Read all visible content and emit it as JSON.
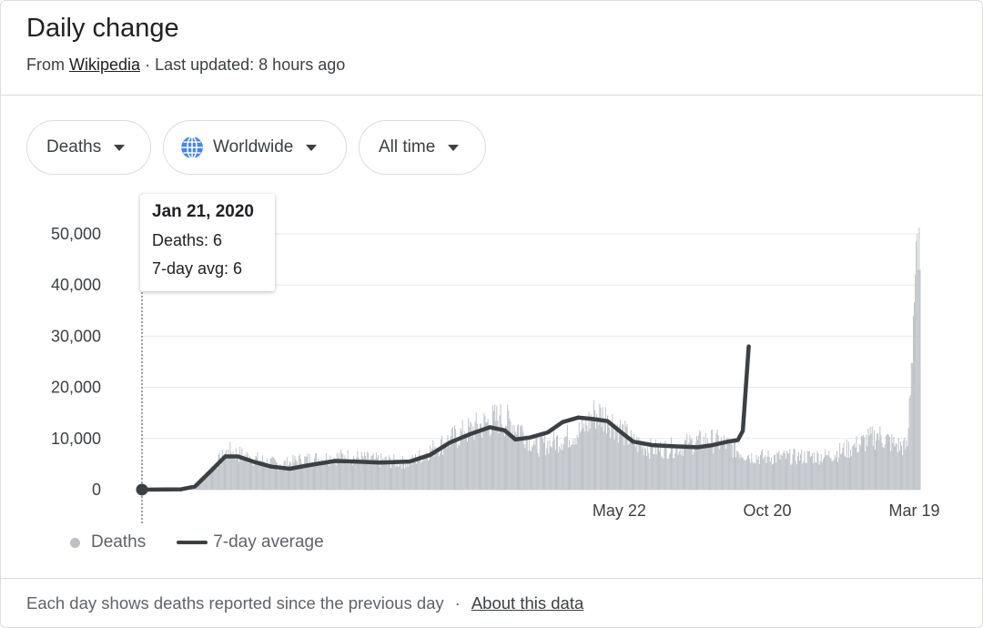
{
  "header": {
    "title": "Daily change",
    "source_prefix": "From",
    "source_link": "Wikipedia",
    "separator": "·",
    "updated": "Last updated: 8 hours ago"
  },
  "filters": {
    "metric": "Deaths",
    "region": "Worldwide",
    "range": "All time"
  },
  "tooltip": {
    "date": "Jan 21, 2020",
    "deaths": "Deaths: 6",
    "avg": "7-day avg: 6"
  },
  "legend": {
    "bars": "Deaths",
    "line": "7-day average"
  },
  "footer": {
    "note": "Each day shows deaths reported since the previous day",
    "separator": "·",
    "link": "About this data"
  },
  "colors": {
    "bars": "#bdc1c6",
    "line": "#3c4043",
    "grid": "#e8eaed",
    "axis_text": "#3c4043"
  },
  "chart_data": {
    "type": "bar",
    "title": "Daily change",
    "y_ticks": [
      0,
      10000,
      20000,
      30000,
      40000,
      50000
    ],
    "y_tick_labels": [
      "0",
      "10,000",
      "20,000",
      "30,000",
      "40,000",
      "50,000"
    ],
    "ylim": [
      0,
      50000
    ],
    "x_tick_labels": [
      {
        "date": "2021-05-22",
        "label": "May 22"
      },
      {
        "date": "2021-10-20",
        "label": "Oct 20"
      },
      {
        "date": "2022-03-19",
        "label": "Mar 19"
      }
    ],
    "x_range": [
      "2020-01-21",
      "2022-03-25"
    ],
    "grid": true,
    "legend_position": "bottom-left",
    "highlight": {
      "date": "2020-01-21",
      "deaths": 6,
      "avg": 6
    },
    "series": [
      {
        "name": "Deaths",
        "kind": "bar",
        "points": [
          [
            "2020-01-21",
            6
          ],
          [
            "2020-02-15",
            30
          ],
          [
            "2020-03-15",
            400
          ],
          [
            "2020-04-02",
            4500
          ],
          [
            "2020-04-18",
            7800
          ],
          [
            "2020-05-10",
            6500
          ],
          [
            "2020-06-10",
            5000
          ],
          [
            "2020-07-01",
            6000
          ],
          [
            "2020-08-15",
            6700
          ],
          [
            "2020-09-15",
            6000
          ],
          [
            "2020-10-20",
            5400
          ],
          [
            "2020-11-15",
            8500
          ],
          [
            "2020-12-15",
            11500
          ],
          [
            "2021-01-20",
            14500
          ],
          [
            "2021-02-10",
            12500
          ],
          [
            "2021-02-25",
            8800
          ],
          [
            "2021-03-15",
            9500
          ],
          [
            "2021-04-15",
            12000
          ],
          [
            "2021-04-27",
            15500
          ],
          [
            "2021-05-10",
            14500
          ],
          [
            "2021-05-22",
            12500
          ],
          [
            "2021-06-05",
            9500
          ],
          [
            "2021-06-25",
            8200
          ],
          [
            "2021-07-15",
            8400
          ],
          [
            "2021-08-01",
            9200
          ],
          [
            "2021-08-20",
            10000
          ],
          [
            "2021-09-05",
            9500
          ],
          [
            "2021-10-01",
            6800
          ],
          [
            "2021-10-20",
            6500
          ],
          [
            "2021-11-20",
            6600
          ],
          [
            "2021-12-20",
            6800
          ],
          [
            "2022-01-15",
            8500
          ],
          [
            "2022-02-10",
            11000
          ],
          [
            "2022-02-28",
            9000
          ],
          [
            "2022-03-12",
            8500
          ],
          [
            "2022-03-21",
            48500
          ],
          [
            "2022-03-22",
            50000
          ],
          [
            "2022-03-23",
            43000
          ],
          [
            "2022-03-25",
            43000
          ]
        ]
      },
      {
        "name": "7-day average",
        "kind": "line",
        "points": [
          [
            "2020-01-21",
            6
          ],
          [
            "2020-02-15",
            30
          ],
          [
            "2020-03-01",
            80
          ],
          [
            "2020-03-15",
            600
          ],
          [
            "2020-04-01",
            3800
          ],
          [
            "2020-04-15",
            6500
          ],
          [
            "2020-04-28",
            6500
          ],
          [
            "2020-05-15",
            5400
          ],
          [
            "2020-06-01",
            4500
          ],
          [
            "2020-06-20",
            4100
          ],
          [
            "2020-07-10",
            4800
          ],
          [
            "2020-08-05",
            5600
          ],
          [
            "2020-08-25",
            5500
          ],
          [
            "2020-09-20",
            5300
          ],
          [
            "2020-10-20",
            5500
          ],
          [
            "2020-11-10",
            6800
          ],
          [
            "2020-11-30",
            9200
          ],
          [
            "2020-12-20",
            10800
          ],
          [
            "2021-01-10",
            12200
          ],
          [
            "2021-01-25",
            11600
          ],
          [
            "2021-02-05",
            9800
          ],
          [
            "2021-02-20",
            10200
          ],
          [
            "2021-03-10",
            11200
          ],
          [
            "2021-03-25",
            13200
          ],
          [
            "2021-04-10",
            14100
          ],
          [
            "2021-04-25",
            13800
          ],
          [
            "2021-05-10",
            13400
          ],
          [
            "2021-05-22",
            11500
          ],
          [
            "2021-06-05",
            9400
          ],
          [
            "2021-06-25",
            8700
          ],
          [
            "2021-07-15",
            8500
          ],
          [
            "2021-08-10",
            8300
          ],
          [
            "2021-08-25",
            8700
          ],
          [
            "2021-09-10",
            9400
          ],
          [
            "2021-09-20",
            9700
          ],
          [
            "2021-09-25",
            11500
          ],
          [
            "2021-10-01",
            28000
          ]
        ]
      }
    ]
  }
}
